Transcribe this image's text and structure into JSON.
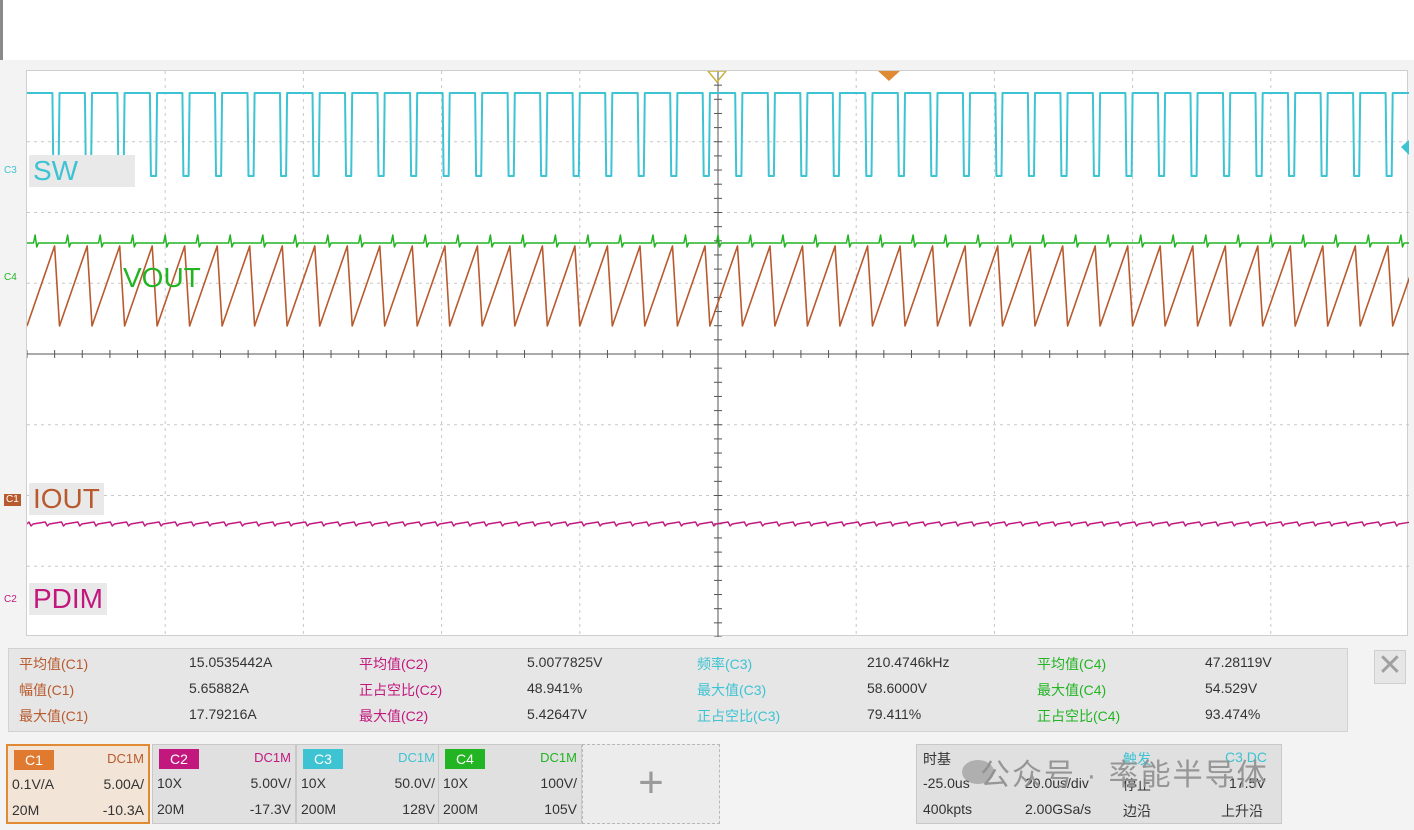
{
  "colors": {
    "c1": "#b85a2e",
    "c2": "#c2187e",
    "c3": "#3ec3d2",
    "c4": "#22b422",
    "grid": "#c8c8c8"
  },
  "traces": {
    "sw_label": "SW",
    "vout_label": "VOUT",
    "iout_label": "IOUT",
    "pdim_label": "PDIM",
    "c3_marker": "C3",
    "c4_marker": "C4",
    "c1_marker": "C1",
    "c2_marker": "C2"
  },
  "measurements": {
    "rows": [
      [
        {
          "label": "平均值(C1)",
          "value": "15.0535442A",
          "color": "#b85a2e"
        },
        {
          "label": "平均值(C2)",
          "value": "5.0077825V",
          "color": "#c2187e"
        },
        {
          "label": "频率(C3)",
          "value": "210.4746kHz",
          "color": "#3ec3d2"
        },
        {
          "label": "平均值(C4)",
          "value": "47.28119V",
          "color": "#22b422"
        }
      ],
      [
        {
          "label": "幅值(C1)",
          "value": "5.65882A",
          "color": "#b85a2e"
        },
        {
          "label": "正占空比(C2)",
          "value": "48.941%",
          "color": "#c2187e"
        },
        {
          "label": "最大值(C3)",
          "value": "58.6000V",
          "color": "#3ec3d2"
        },
        {
          "label": "最大值(C4)",
          "value": "54.529V",
          "color": "#22b422"
        }
      ],
      [
        {
          "label": "最大值(C1)",
          "value": "17.79216A",
          "color": "#b85a2e"
        },
        {
          "label": "最大值(C2)",
          "value": "5.42647V",
          "color": "#c2187e"
        },
        {
          "label": "正占空比(C3)",
          "value": "79.411%",
          "color": "#3ec3d2"
        },
        {
          "label": "正占空比(C4)",
          "value": "93.474%",
          "color": "#22b422"
        }
      ]
    ],
    "close_label": "✕"
  },
  "channels": [
    {
      "name": "C1",
      "coupling": "DC1M",
      "r1a": "0.1V/A",
      "r1b": "5.00A/",
      "r2a": "20M",
      "r2b": "-10.3A",
      "color": "#e07a30",
      "text": "#b85a2e"
    },
    {
      "name": "C2",
      "coupling": "DC1M",
      "r1a": "10X",
      "r1b": "5.00V/",
      "r2a": "20M",
      "r2b": "-17.3V",
      "color": "#c2187e",
      "text": "#c2187e"
    },
    {
      "name": "C3",
      "coupling": "DC1M",
      "r1a": "10X",
      "r1b": "50.0V/",
      "r2a": "200M",
      "r2b": "128V",
      "color": "#3ec3d2",
      "text": "#3ec3d2"
    },
    {
      "name": "C4",
      "coupling": "DC1M",
      "r1a": "10X",
      "r1b": "100V/",
      "r2a": "200M",
      "r2b": "105V",
      "color": "#22b422",
      "text": "#22b422"
    }
  ],
  "add_channel": "+",
  "timebase": {
    "title": "时基",
    "pos": "-25.0us",
    "scale": "20.0us/div",
    "points": "400kpts",
    "rate": "2.00GSa/s",
    "trigger": "触发",
    "trig_src": "C3 DC",
    "state": "停止",
    "level": "17.5V",
    "type": "边沿",
    "slope": "上升沿"
  },
  "watermark": "公众号 · 率能半导体"
}
